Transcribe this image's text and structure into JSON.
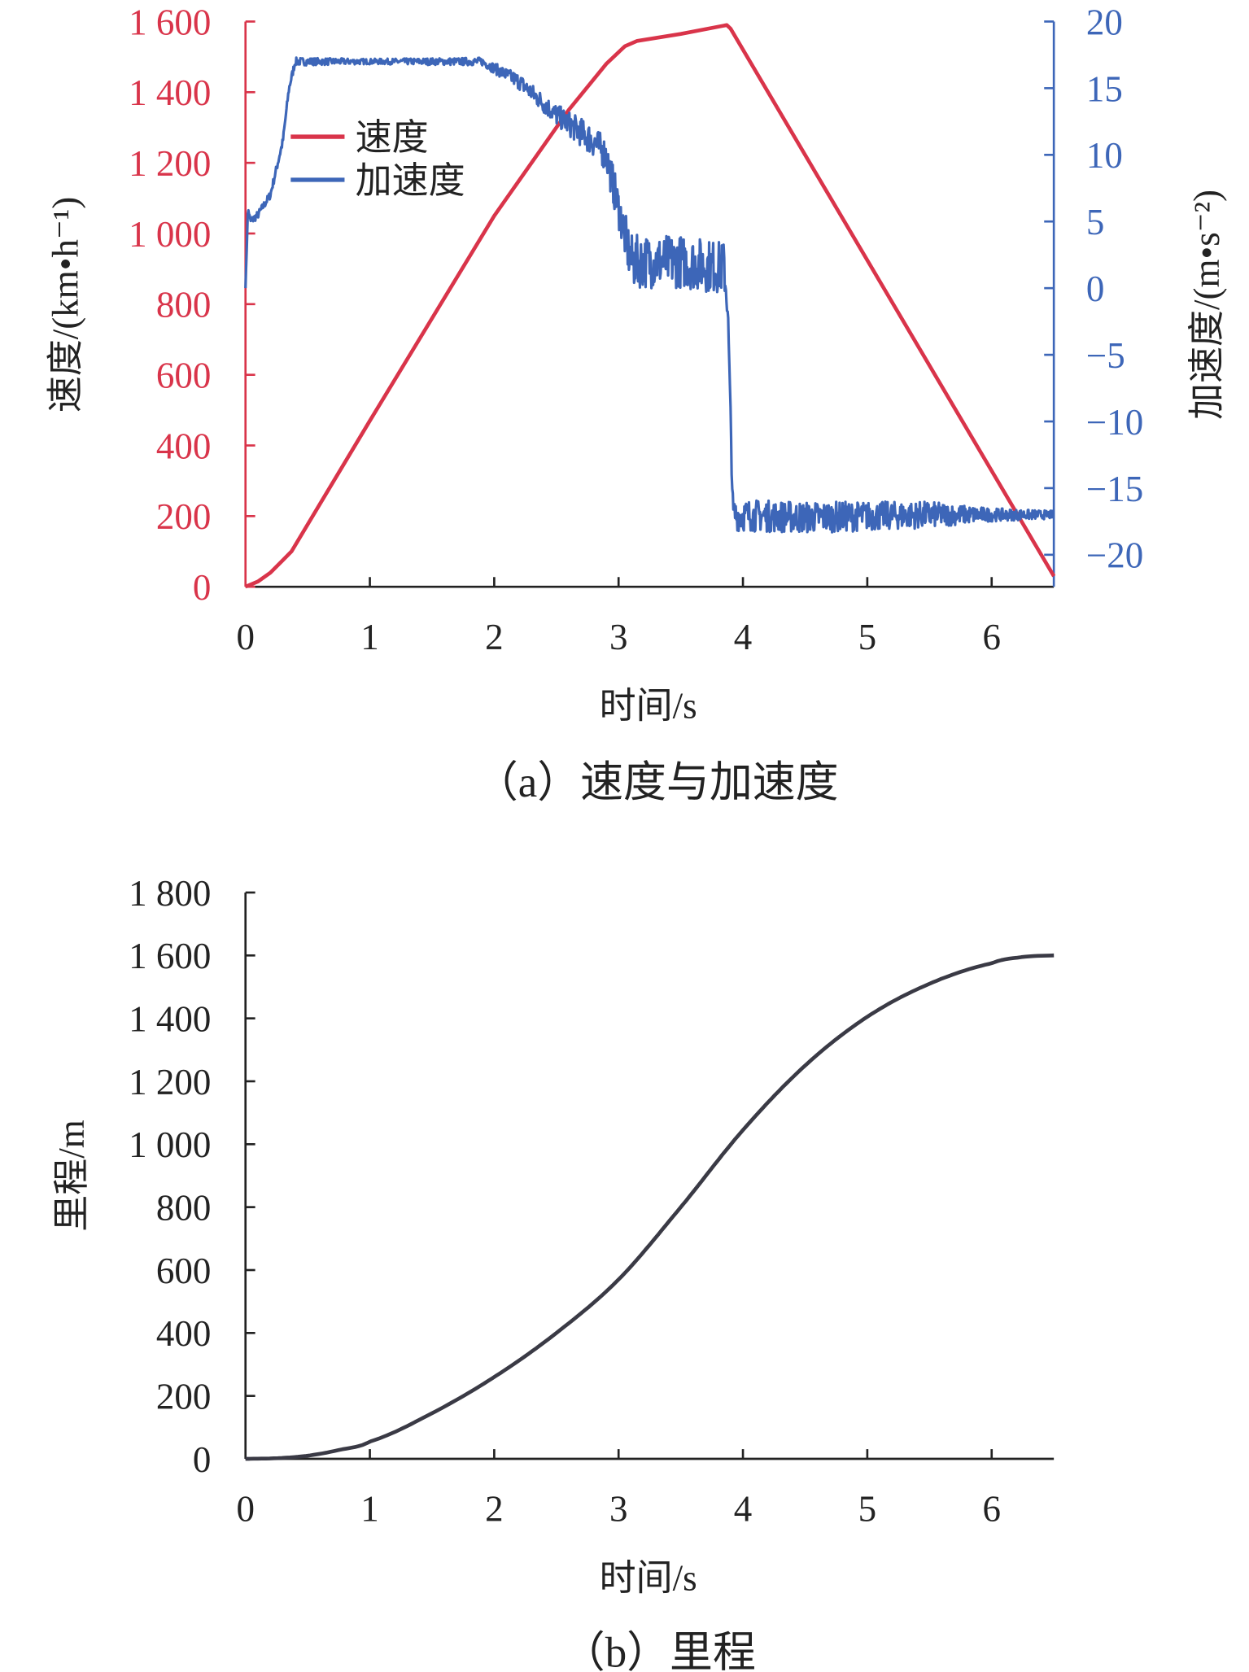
{
  "colors": {
    "speed": "#d9344a",
    "accel": "#3d66b8",
    "distance": "#3a3a45",
    "axis": "#222222"
  },
  "chart_data": [
    {
      "type": "line",
      "caption": "（a）速度与加速度",
      "xlabel": "时间/s",
      "ylabel": "速度/(km•h⁻¹)",
      "y2label": "加速度/(m•s⁻²)",
      "xlim": [
        0,
        6.5
      ],
      "ylim": [
        0,
        1600
      ],
      "y2lim": [
        -22.4,
        20
      ],
      "xticks": [
        "0",
        "1",
        "2",
        "3",
        "4",
        "5",
        "6"
      ],
      "yticks": [
        "0",
        "200",
        "400",
        "600",
        "800",
        "1 000",
        "1 200",
        "1 400",
        "1 600"
      ],
      "ytick_values": [
        0,
        200,
        400,
        600,
        800,
        1000,
        1200,
        1400,
        1600
      ],
      "y2ticks": [
        "−20",
        "−15",
        "−10",
        "−5",
        "0",
        "5",
        "10",
        "15",
        "20"
      ],
      "y2tick_values": [
        -20,
        -15,
        -10,
        -5,
        0,
        5,
        10,
        15,
        20
      ],
      "legend": {
        "placement": "top-left",
        "entries": [
          "速度",
          "加速度"
        ]
      },
      "series": [
        {
          "name": "速度",
          "axis": "left",
          "x": [
            0,
            0.1,
            0.2,
            0.3,
            0.37,
            1.0,
            2.0,
            2.6,
            2.9,
            3.05,
            3.15,
            3.5,
            3.87,
            3.9,
            6.5
          ],
          "y": [
            0,
            15,
            40,
            75,
            100,
            470,
            1050,
            1350,
            1480,
            1530,
            1545,
            1565,
            1590,
            1580,
            30
          ]
        },
        {
          "name": "加速度",
          "axis": "right",
          "noise": true,
          "x": [
            0,
            0.02,
            0.04,
            0.1,
            0.2,
            0.3,
            0.35,
            0.4,
            1.0,
            1.9,
            2.2,
            2.5,
            2.8,
            2.9,
            2.95,
            3.0,
            3.1,
            3.5,
            3.85,
            3.88,
            3.92,
            4.5,
            5.5,
            6.0,
            6.5
          ],
          "y": [
            0,
            6,
            5,
            5.5,
            7,
            11,
            15,
            17,
            17,
            17,
            15.5,
            13,
            11,
            10,
            8,
            6,
            2,
            2,
            1.5,
            -2,
            -17,
            -17.2,
            -17,
            -17,
            -17
          ],
          "noise_amplitude": [
            0,
            0,
            0.3,
            0.3,
            0.3,
            0.3,
            0.3,
            0.3,
            0.2,
            0.3,
            0.6,
            0.8,
            1.2,
            1.2,
            1.5,
            1.5,
            2,
            2,
            2,
            0.5,
            1.2,
            1.2,
            1.0,
            0.5,
            0.3
          ]
        }
      ]
    },
    {
      "type": "line",
      "caption": "（b）里程",
      "xlabel": "时间/s",
      "ylabel": "里程/m",
      "xlim": [
        0,
        6.5
      ],
      "ylim": [
        0,
        1800
      ],
      "xticks": [
        "0",
        "1",
        "2",
        "3",
        "4",
        "5",
        "6"
      ],
      "yticks": [
        "0",
        "200",
        "400",
        "600",
        "800",
        "1 000",
        "1 200",
        "1 400",
        "1 600",
        "1 800"
      ],
      "ytick_values": [
        0,
        200,
        400,
        600,
        800,
        1000,
        1200,
        1400,
        1600,
        1800
      ],
      "series": [
        {
          "name": "里程",
          "x": [
            0,
            0.25,
            0.5,
            0.75,
            1,
            1.5,
            2,
            2.5,
            3,
            3.5,
            4,
            4.5,
            5,
            5.5,
            6,
            6.25,
            6.5
          ],
          "y": [
            0,
            2,
            10,
            28,
            55,
            145,
            260,
            400,
            570,
            800,
            1045,
            1250,
            1405,
            1510,
            1575,
            1595,
            1600
          ]
        }
      ]
    }
  ]
}
